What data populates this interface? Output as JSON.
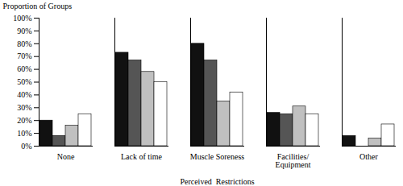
{
  "chart_data": {
    "type": "bar",
    "categories": [
      "None",
      "Lack of time",
      "Muscle Soreness",
      "Facilities/\nEquipment",
      "Other"
    ],
    "series": [
      {
        "color": "#111111",
        "values": [
          20,
          73,
          80,
          26,
          8
        ]
      },
      {
        "color": "#555555",
        "values": [
          8,
          67,
          67,
          25,
          0
        ]
      },
      {
        "color": "#c0c0c0",
        "values": [
          16,
          58,
          35,
          31,
          6
        ]
      },
      {
        "color": "#ffffff",
        "values": [
          25,
          50,
          42,
          25,
          17
        ]
      }
    ],
    "xlabel": "Perceived  Restrictions",
    "ylabel": "Proportion of Groups",
    "ylim": [
      0,
      100
    ],
    "yticks": [
      {
        "value": 0,
        "label": "0%"
      },
      {
        "value": 10,
        "label": "10%"
      },
      {
        "value": 20,
        "label": "20%"
      },
      {
        "value": 30,
        "label": "30%"
      },
      {
        "value": 40,
        "label": "40%"
      },
      {
        "value": 50,
        "label": "50%"
      },
      {
        "value": 60,
        "label": "60%"
      },
      {
        "value": 70,
        "label": "70%"
      },
      {
        "value": 80,
        "label": "80%"
      },
      {
        "value": 90,
        "label": "90%"
      },
      {
        "value": 100,
        "label": "100%"
      }
    ],
    "grid": false
  }
}
